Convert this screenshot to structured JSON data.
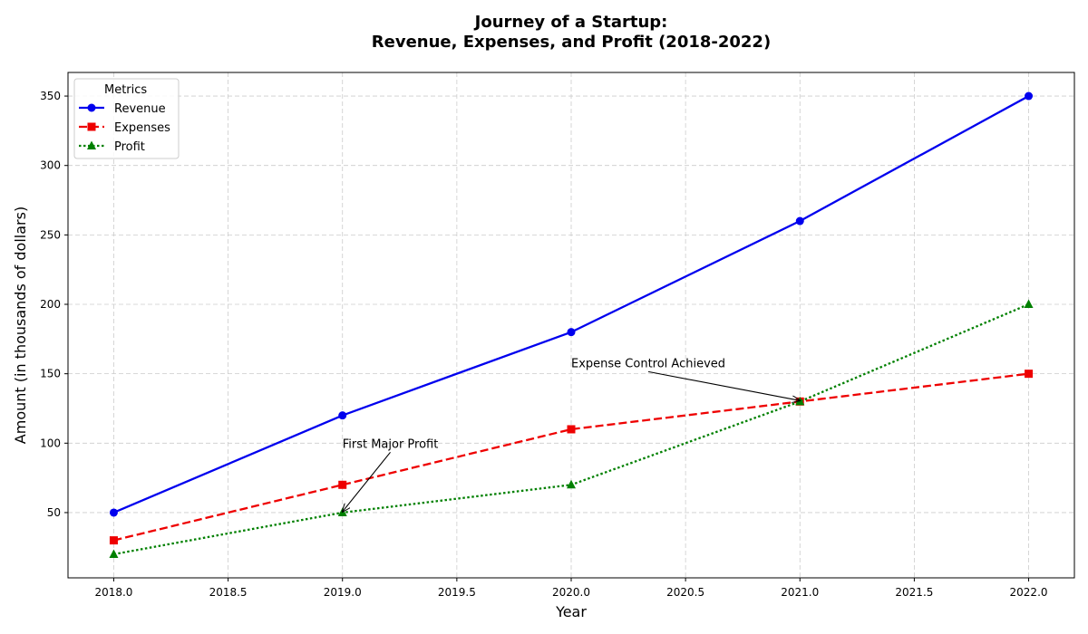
{
  "chart_data": {
    "type": "line",
    "title_lines": [
      "Journey of a Startup:",
      "Revenue, Expenses, and Profit (2018-2022)"
    ],
    "xlabel": "Year",
    "ylabel": "Amount (in thousands of dollars)",
    "x": [
      2018,
      2019,
      2020,
      2021,
      2022
    ],
    "xlim": [
      2017.8,
      2022.2
    ],
    "ylim": [
      3,
      367
    ],
    "x_ticks": [
      2018.0,
      2018.5,
      2019.0,
      2019.5,
      2020.0,
      2020.5,
      2021.0,
      2021.5,
      2022.0
    ],
    "x_tick_labels": [
      "2018.0",
      "2018.5",
      "2019.0",
      "2019.5",
      "2020.0",
      "2020.5",
      "2021.0",
      "2021.5",
      "2022.0"
    ],
    "y_ticks": [
      50,
      100,
      150,
      200,
      250,
      300,
      350
    ],
    "y_tick_labels": [
      "50",
      "100",
      "150",
      "200",
      "250",
      "300",
      "350"
    ],
    "grid": true,
    "legend": {
      "title": "Metrics",
      "placement": "top-left"
    },
    "series": [
      {
        "name": "Revenue",
        "values": [
          50,
          120,
          180,
          260,
          350
        ],
        "color": "#0000ee",
        "line_style": "solid",
        "marker": "circle"
      },
      {
        "name": "Expenses",
        "values": [
          30,
          70,
          110,
          130,
          150
        ],
        "color": "#ee0000",
        "line_style": "dashed",
        "marker": "square"
      },
      {
        "name": "Profit",
        "values": [
          20,
          50,
          70,
          130,
          200
        ],
        "color": "#008000",
        "line_style": "dotted",
        "marker": "triangle"
      }
    ],
    "annotations": [
      {
        "text": "First Major Profit",
        "point": [
          2019,
          50
        ],
        "text_anchor": [
          2019,
          100
        ]
      },
      {
        "text": "Expense Control Achieved",
        "point": [
          2021,
          130
        ],
        "text_anchor": [
          2020,
          158
        ]
      }
    ]
  }
}
